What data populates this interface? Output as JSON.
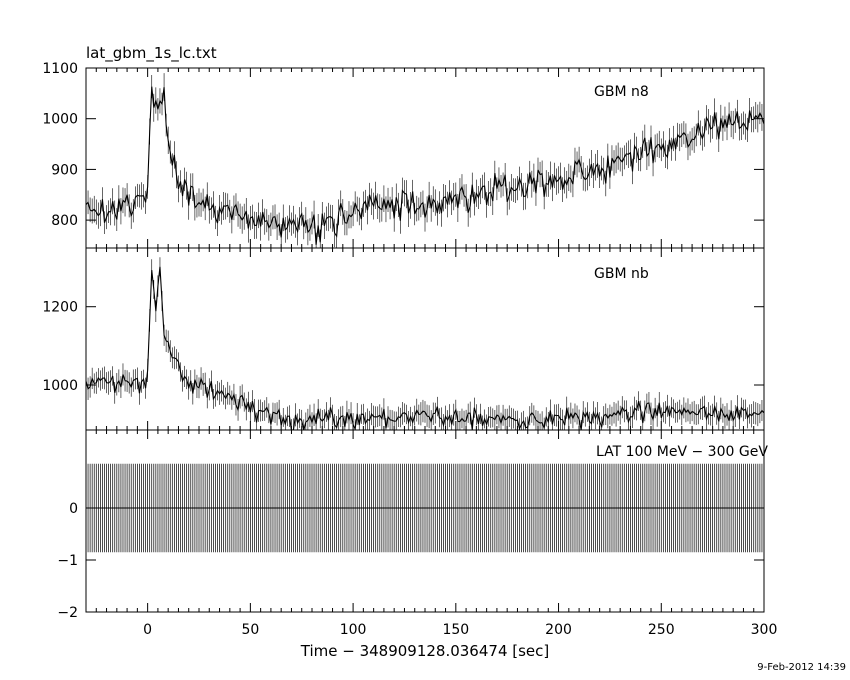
{
  "title": "lat_gbm_1s_lc.txt",
  "timestamp": "9-Feb-2012 14:39",
  "chart_data": {
    "type": "line",
    "title": "lat_gbm_1s_lc.txt",
    "xlabel": "Time − 348909128.036474 [sec]",
    "xlim": [
      -30,
      300
    ],
    "xticks": [
      0,
      50,
      100,
      150,
      200,
      250,
      300
    ],
    "x_common": [
      -30,
      -20,
      -10,
      0,
      2,
      4,
      6,
      8,
      10,
      15,
      20,
      30,
      40,
      50,
      60,
      70,
      80,
      90,
      100,
      120,
      140,
      160,
      180,
      200,
      220,
      240,
      260,
      280,
      300
    ],
    "panels": [
      {
        "label": "GBM n8",
        "ylim": [
          745,
          1100
        ],
        "yticks": [
          800,
          900,
          1000,
          1100
        ],
        "series": [
          {
            "values": [
              830,
              820,
              830,
              840,
              1080,
              1040,
              1000,
              1060,
              960,
              880,
              840,
              820,
              815,
              800,
              790,
              790,
              785,
              800,
              820,
              830,
              835,
              850,
              870,
              880,
              900,
              930,
              960,
              990,
              1000
            ]
          }
        ]
      },
      {
        "label": "GBM nb",
        "ylim": [
          885,
          1350
        ],
        "yticks": [
          1000,
          1200
        ],
        "series": [
          {
            "values": [
              1000,
              1010,
              1000,
              1020,
              1300,
              1200,
              1300,
              1150,
              1100,
              1050,
              1000,
              990,
              970,
              940,
              920,
              915,
              915,
              915,
              915,
              915,
              920,
              915,
              910,
              915,
              920,
              930,
              930,
              930,
              935
            ]
          }
        ]
      },
      {
        "label": "LAT 100 MeV − 300 GeV",
        "ylim": [
          -2,
          1.5
        ],
        "yticks": [
          -2,
          -1,
          0
        ],
        "series": [
          {
            "values": [
              0,
              0,
              0,
              0,
              0,
              0,
              0,
              0,
              0,
              0,
              0,
              0,
              0,
              0,
              0,
              0,
              0,
              0,
              0,
              0,
              0,
              0,
              0,
              0,
              0,
              0,
              0,
              0,
              0
            ]
          }
        ],
        "errorbar_halfwidth": 0.85
      }
    ]
  }
}
